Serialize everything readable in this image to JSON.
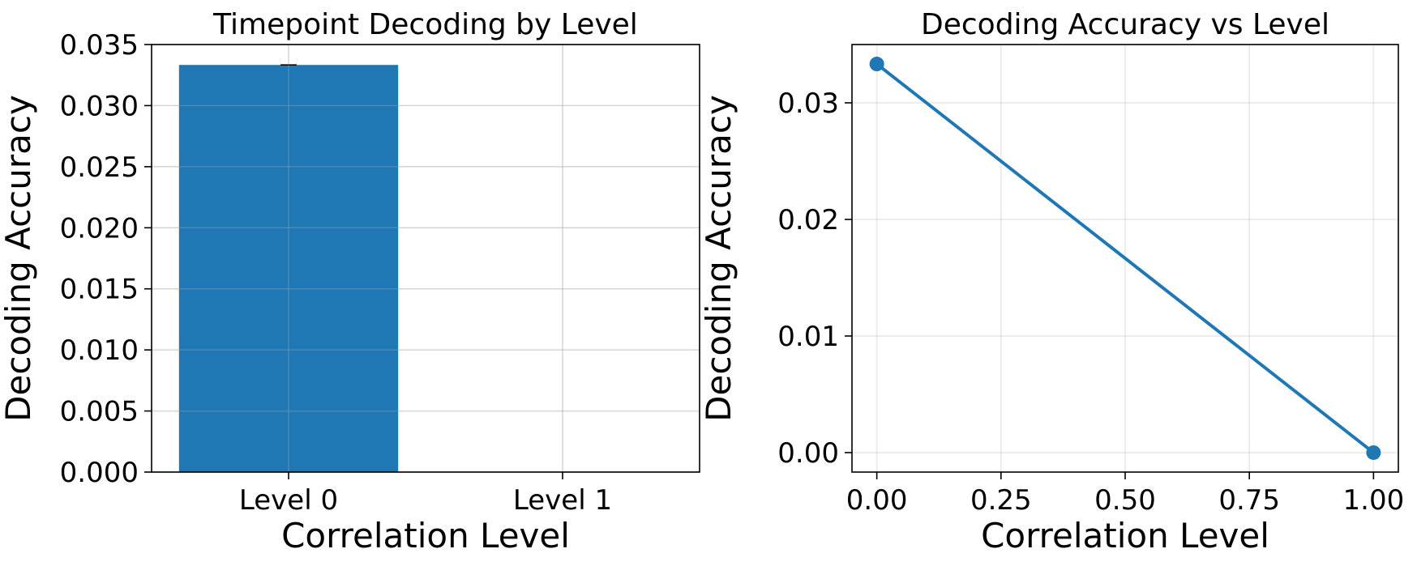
{
  "colors": {
    "series": "#1f77b4",
    "errorbar": "#000000"
  },
  "chart_data": [
    {
      "type": "bar",
      "title": "Timepoint Decoding by Level",
      "xlabel": "Correlation Level",
      "ylabel": "Decoding Accuracy",
      "categories": [
        "Level 0",
        "Level 1"
      ],
      "values": [
        0.03333,
        0.0
      ],
      "errors": [
        0.0,
        0.0
      ],
      "ylim": [
        0,
        0.035
      ],
      "yticks": [
        0.0,
        0.005,
        0.01,
        0.015,
        0.02,
        0.025,
        0.03,
        0.035
      ],
      "ytick_labels": [
        "0.000",
        "0.005",
        "0.010",
        "0.015",
        "0.020",
        "0.025",
        "0.030",
        "0.035"
      ],
      "grid": true
    },
    {
      "type": "line",
      "title": "Decoding Accuracy vs Level",
      "xlabel": "Correlation Level",
      "ylabel": "Decoding Accuracy",
      "x": [
        0.0,
        1.0
      ],
      "y": [
        0.03333,
        0.0
      ],
      "xlim": [
        -0.05,
        1.05
      ],
      "ylim": [
        -0.00167,
        0.035
      ],
      "xticks": [
        0.0,
        0.25,
        0.5,
        0.75,
        1.0
      ],
      "xtick_labels": [
        "0.00",
        "0.25",
        "0.50",
        "0.75",
        "1.00"
      ],
      "yticks": [
        0.0,
        0.01,
        0.02,
        0.03
      ],
      "ytick_labels": [
        "0.00",
        "0.01",
        "0.02",
        "0.03"
      ],
      "grid": true,
      "marker": "circle"
    }
  ]
}
